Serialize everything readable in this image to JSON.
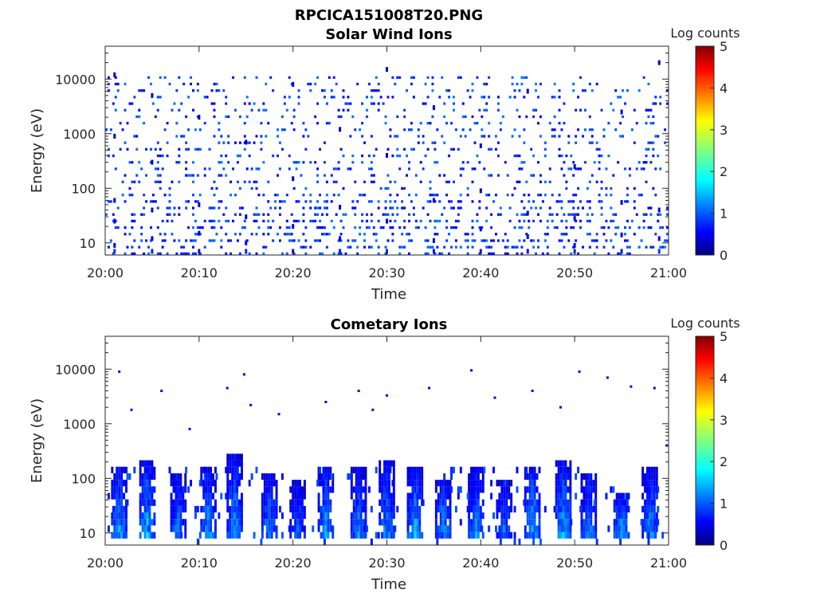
{
  "figure_title": "RPCICA151008T20.PNG",
  "colorbar_ticks": [
    0,
    1,
    2,
    3,
    4,
    5
  ],
  "colors": {
    "jet_low": "#00007f",
    "jet_high": "#7f0000",
    "axis": "#262626"
  },
  "chart_data": [
    {
      "type": "heatmap",
      "title": "Solar Wind Ions",
      "xlabel": "Time",
      "ylabel": "Energy (eV)",
      "y_scale": "log",
      "ylim": [
        6,
        40000
      ],
      "x_ticks": [
        "20:00",
        "20:10",
        "20:20",
        "20:30",
        "20:40",
        "20:50",
        "21:00"
      ],
      "y_ticks": [
        {
          "value": 10,
          "label": "10"
        },
        {
          "value": 100,
          "label": "100"
        },
        {
          "value": 1000,
          "label": "1000"
        },
        {
          "value": 10000,
          "label": "10000"
        }
      ],
      "colorbar_label": "Log counts",
      "clim": [
        0,
        5
      ],
      "colormap": "jet",
      "pattern": "sparse noise ~0.3-1 log counts across 10 eV-20 keV, denser columns below 100 eV",
      "columns": [
        {
          "time": "20:01",
          "bins": [
            [
              7,
              0.9
            ],
            [
              9,
              0.5
            ],
            [
              25,
              0.6
            ],
            [
              60,
              0.4
            ],
            [
              900,
              0.3
            ],
            [
              12000,
              0.3
            ]
          ]
        },
        {
          "time": "20:05",
          "bins": [
            [
              7,
              0.8
            ],
            [
              12,
              0.6
            ],
            [
              40,
              0.5
            ],
            [
              300,
              0.3
            ],
            [
              5000,
              0.3
            ]
          ]
        },
        {
          "time": "20:10",
          "bins": [
            [
              7,
              0.7
            ],
            [
              15,
              0.5
            ],
            [
              50,
              0.4
            ],
            [
              2000,
              0.3
            ]
          ]
        },
        {
          "time": "20:15",
          "bins": [
            [
              7,
              0.8
            ],
            [
              10,
              0.6
            ],
            [
              30,
              0.5
            ],
            [
              700,
              0.3
            ]
          ]
        },
        {
          "time": "20:20",
          "bins": [
            [
              7,
              0.7
            ],
            [
              20,
              0.5
            ],
            [
              150,
              0.3
            ],
            [
              8000,
              0.3
            ]
          ]
        },
        {
          "time": "20:25",
          "bins": [
            [
              7,
              0.8
            ],
            [
              12,
              0.6
            ],
            [
              45,
              0.4
            ],
            [
              1200,
              0.3
            ]
          ]
        },
        {
          "time": "20:30",
          "bins": [
            [
              7,
              0.9
            ],
            [
              25,
              0.5
            ],
            [
              400,
              0.3
            ],
            [
              15000,
              0.3
            ]
          ]
        },
        {
          "time": "20:35",
          "bins": [
            [
              7,
              0.7
            ],
            [
              11,
              0.5
            ],
            [
              60,
              0.4
            ],
            [
              3000,
              0.3
            ]
          ]
        },
        {
          "time": "20:40",
          "bins": [
            [
              7,
              0.8
            ],
            [
              18,
              0.5
            ],
            [
              90,
              0.3
            ],
            [
              600,
              0.3
            ]
          ]
        },
        {
          "time": "20:45",
          "bins": [
            [
              7,
              0.7
            ],
            [
              13,
              0.6
            ],
            [
              35,
              0.4
            ],
            [
              6000,
              0.3
            ]
          ]
        },
        {
          "time": "20:50",
          "bins": [
            [
              7,
              0.9
            ],
            [
              9,
              0.6
            ],
            [
              28,
              0.5
            ],
            [
              250,
              0.3
            ]
          ]
        },
        {
          "time": "20:55",
          "bins": [
            [
              7,
              0.8
            ],
            [
              14,
              0.5
            ],
            [
              55,
              0.4
            ],
            [
              2500,
              0.3
            ]
          ]
        },
        {
          "time": "20:59",
          "bins": [
            [
              7,
              0.9
            ],
            [
              12,
              0.6
            ],
            [
              40,
              0.5
            ],
            [
              20000,
              0.3
            ]
          ]
        }
      ]
    },
    {
      "type": "heatmap",
      "title": "Cometary Ions",
      "xlabel": "Time",
      "ylabel": "Energy (eV)",
      "y_scale": "log",
      "ylim": [
        6,
        40000
      ],
      "x_ticks": [
        "20:00",
        "20:10",
        "20:20",
        "20:30",
        "20:40",
        "20:50",
        "21:00"
      ],
      "y_ticks": [
        {
          "value": 10,
          "label": "10"
        },
        {
          "value": 100,
          "label": "100"
        },
        {
          "value": 1000,
          "label": "1000"
        },
        {
          "value": 10000,
          "label": "10000"
        }
      ],
      "colorbar_label": "Log counts",
      "clim": [
        0,
        5
      ],
      "colormap": "jet",
      "pattern": "periodic bursts ~every 3.5 min, 10-300 eV, peak ~1.8-2 log counts near 10-60 eV",
      "bursts": [
        {
          "time": "20:01.5",
          "emin": 7,
          "emax": 150,
          "peak": 1.8
        },
        {
          "time": "20:04.5",
          "emin": 7,
          "emax": 200,
          "peak": 2.0
        },
        {
          "time": "20:07.8",
          "emin": 8,
          "emax": 120,
          "peak": 1.6
        },
        {
          "time": "20:11",
          "emin": 8,
          "emax": 150,
          "peak": 1.7
        },
        {
          "time": "20:13.8",
          "emin": 7,
          "emax": 250,
          "peak": 1.8
        },
        {
          "time": "20:17.5",
          "emin": 8,
          "emax": 120,
          "peak": 1.6
        },
        {
          "time": "20:20.5",
          "emin": 8,
          "emax": 100,
          "peak": 1.4
        },
        {
          "time": "20:23.5",
          "emin": 7,
          "emax": 180,
          "peak": 1.8
        },
        {
          "time": "20:27",
          "emin": 8,
          "emax": 150,
          "peak": 1.6
        },
        {
          "time": "20:30",
          "emin": 7,
          "emax": 200,
          "peak": 1.7
        },
        {
          "time": "20:33",
          "emin": 7,
          "emax": 180,
          "peak": 1.9
        },
        {
          "time": "20:36",
          "emin": 7,
          "emax": 100,
          "peak": 1.8
        },
        {
          "time": "20:39.5",
          "emin": 8,
          "emax": 150,
          "peak": 1.7
        },
        {
          "time": "20:42.5",
          "emin": 8,
          "emax": 100,
          "peak": 1.5
        },
        {
          "time": "20:45.5",
          "emin": 7,
          "emax": 180,
          "peak": 1.9
        },
        {
          "time": "20:48.8",
          "emin": 7,
          "emax": 200,
          "peak": 1.9
        },
        {
          "time": "20:51.5",
          "emin": 8,
          "emax": 120,
          "peak": 1.6
        },
        {
          "time": "20:55",
          "emin": 7,
          "emax": 50,
          "peak": 1.9
        },
        {
          "time": "20:58",
          "emin": 7,
          "emax": 150,
          "peak": 1.8
        }
      ],
      "isolated_points": [
        {
          "time": "20:01.5",
          "energy": 9000
        },
        {
          "time": "20:02.8",
          "energy": 1800
        },
        {
          "time": "20:06",
          "energy": 4000
        },
        {
          "time": "20:09",
          "energy": 800
        },
        {
          "time": "20:13",
          "energy": 4500
        },
        {
          "time": "20:14.8",
          "energy": 8000
        },
        {
          "time": "20:15.5",
          "energy": 2200
        },
        {
          "time": "20:18.5",
          "energy": 1500
        },
        {
          "time": "20:23.5",
          "energy": 2500
        },
        {
          "time": "20:27",
          "energy": 4000
        },
        {
          "time": "20:28.5",
          "energy": 1800
        },
        {
          "time": "20:30",
          "energy": 3300
        },
        {
          "time": "20:34.5",
          "energy": 4500
        },
        {
          "time": "20:39",
          "energy": 9500
        },
        {
          "time": "20:41.5",
          "energy": 3000
        },
        {
          "time": "20:45.5",
          "energy": 4000
        },
        {
          "time": "20:48.5",
          "energy": 2000
        },
        {
          "time": "20:50.5",
          "energy": 9000
        },
        {
          "time": "20:53.5",
          "energy": 7000
        },
        {
          "time": "20:56",
          "energy": 4800
        },
        {
          "time": "20:58.5",
          "energy": 4500
        },
        {
          "time": "20:59.8",
          "energy": 400
        }
      ]
    }
  ]
}
